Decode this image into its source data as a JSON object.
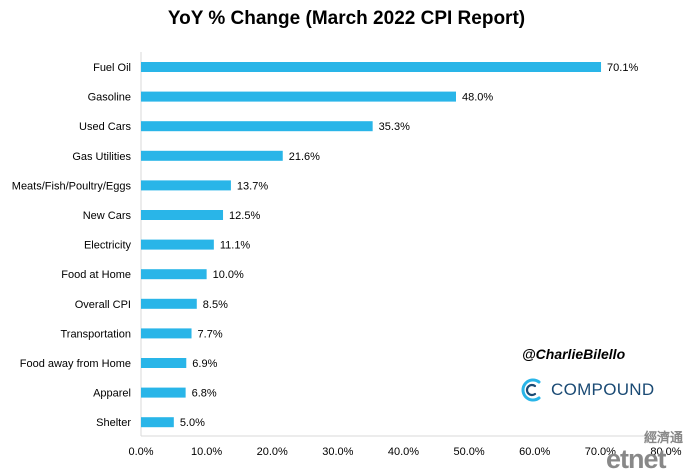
{
  "chart_data": {
    "type": "bar",
    "orientation": "horizontal",
    "title": "YoY % Change (March 2022 CPI Report)",
    "categories": [
      "Fuel Oil",
      "Gasoline",
      "Used Cars",
      "Gas Utilities",
      "Meats/Fish/Poultry/Eggs",
      "New Cars",
      "Electricity",
      "Food at Home",
      "Overall CPI",
      "Transportation",
      "Food away from Home",
      "Apparel",
      "Shelter"
    ],
    "values": [
      70.1,
      48.0,
      35.3,
      21.6,
      13.7,
      12.5,
      11.1,
      10.0,
      8.5,
      7.7,
      6.9,
      6.8,
      5.0
    ],
    "value_labels": [
      "70.1%",
      "48.0%",
      "35.3%",
      "21.6%",
      "13.7%",
      "12.5%",
      "11.1%",
      "10.0%",
      "8.5%",
      "7.7%",
      "6.9%",
      "6.8%",
      "5.0%"
    ],
    "xlim": [
      0,
      80
    ],
    "xticks": [
      0,
      10,
      20,
      30,
      40,
      50,
      60,
      70,
      80
    ],
    "xtick_labels": [
      "0.0%",
      "10.0%",
      "20.0%",
      "30.0%",
      "40.0%",
      "50.0%",
      "60.0%",
      "70.0%",
      "80.0%"
    ],
    "xlabel": "",
    "ylabel": "",
    "grid": false,
    "bar_color": "#29b5e8"
  },
  "watermark": {
    "handle": "@CharlieBilello",
    "brand": "COMPOUND",
    "brand_color": "#1a4a74",
    "icon_name": "compound-logo-icon"
  },
  "etnet": {
    "chinese": "經濟通",
    "text": "etnet",
    "color_main": "#888888",
    "color_accent": "#d0021b"
  }
}
